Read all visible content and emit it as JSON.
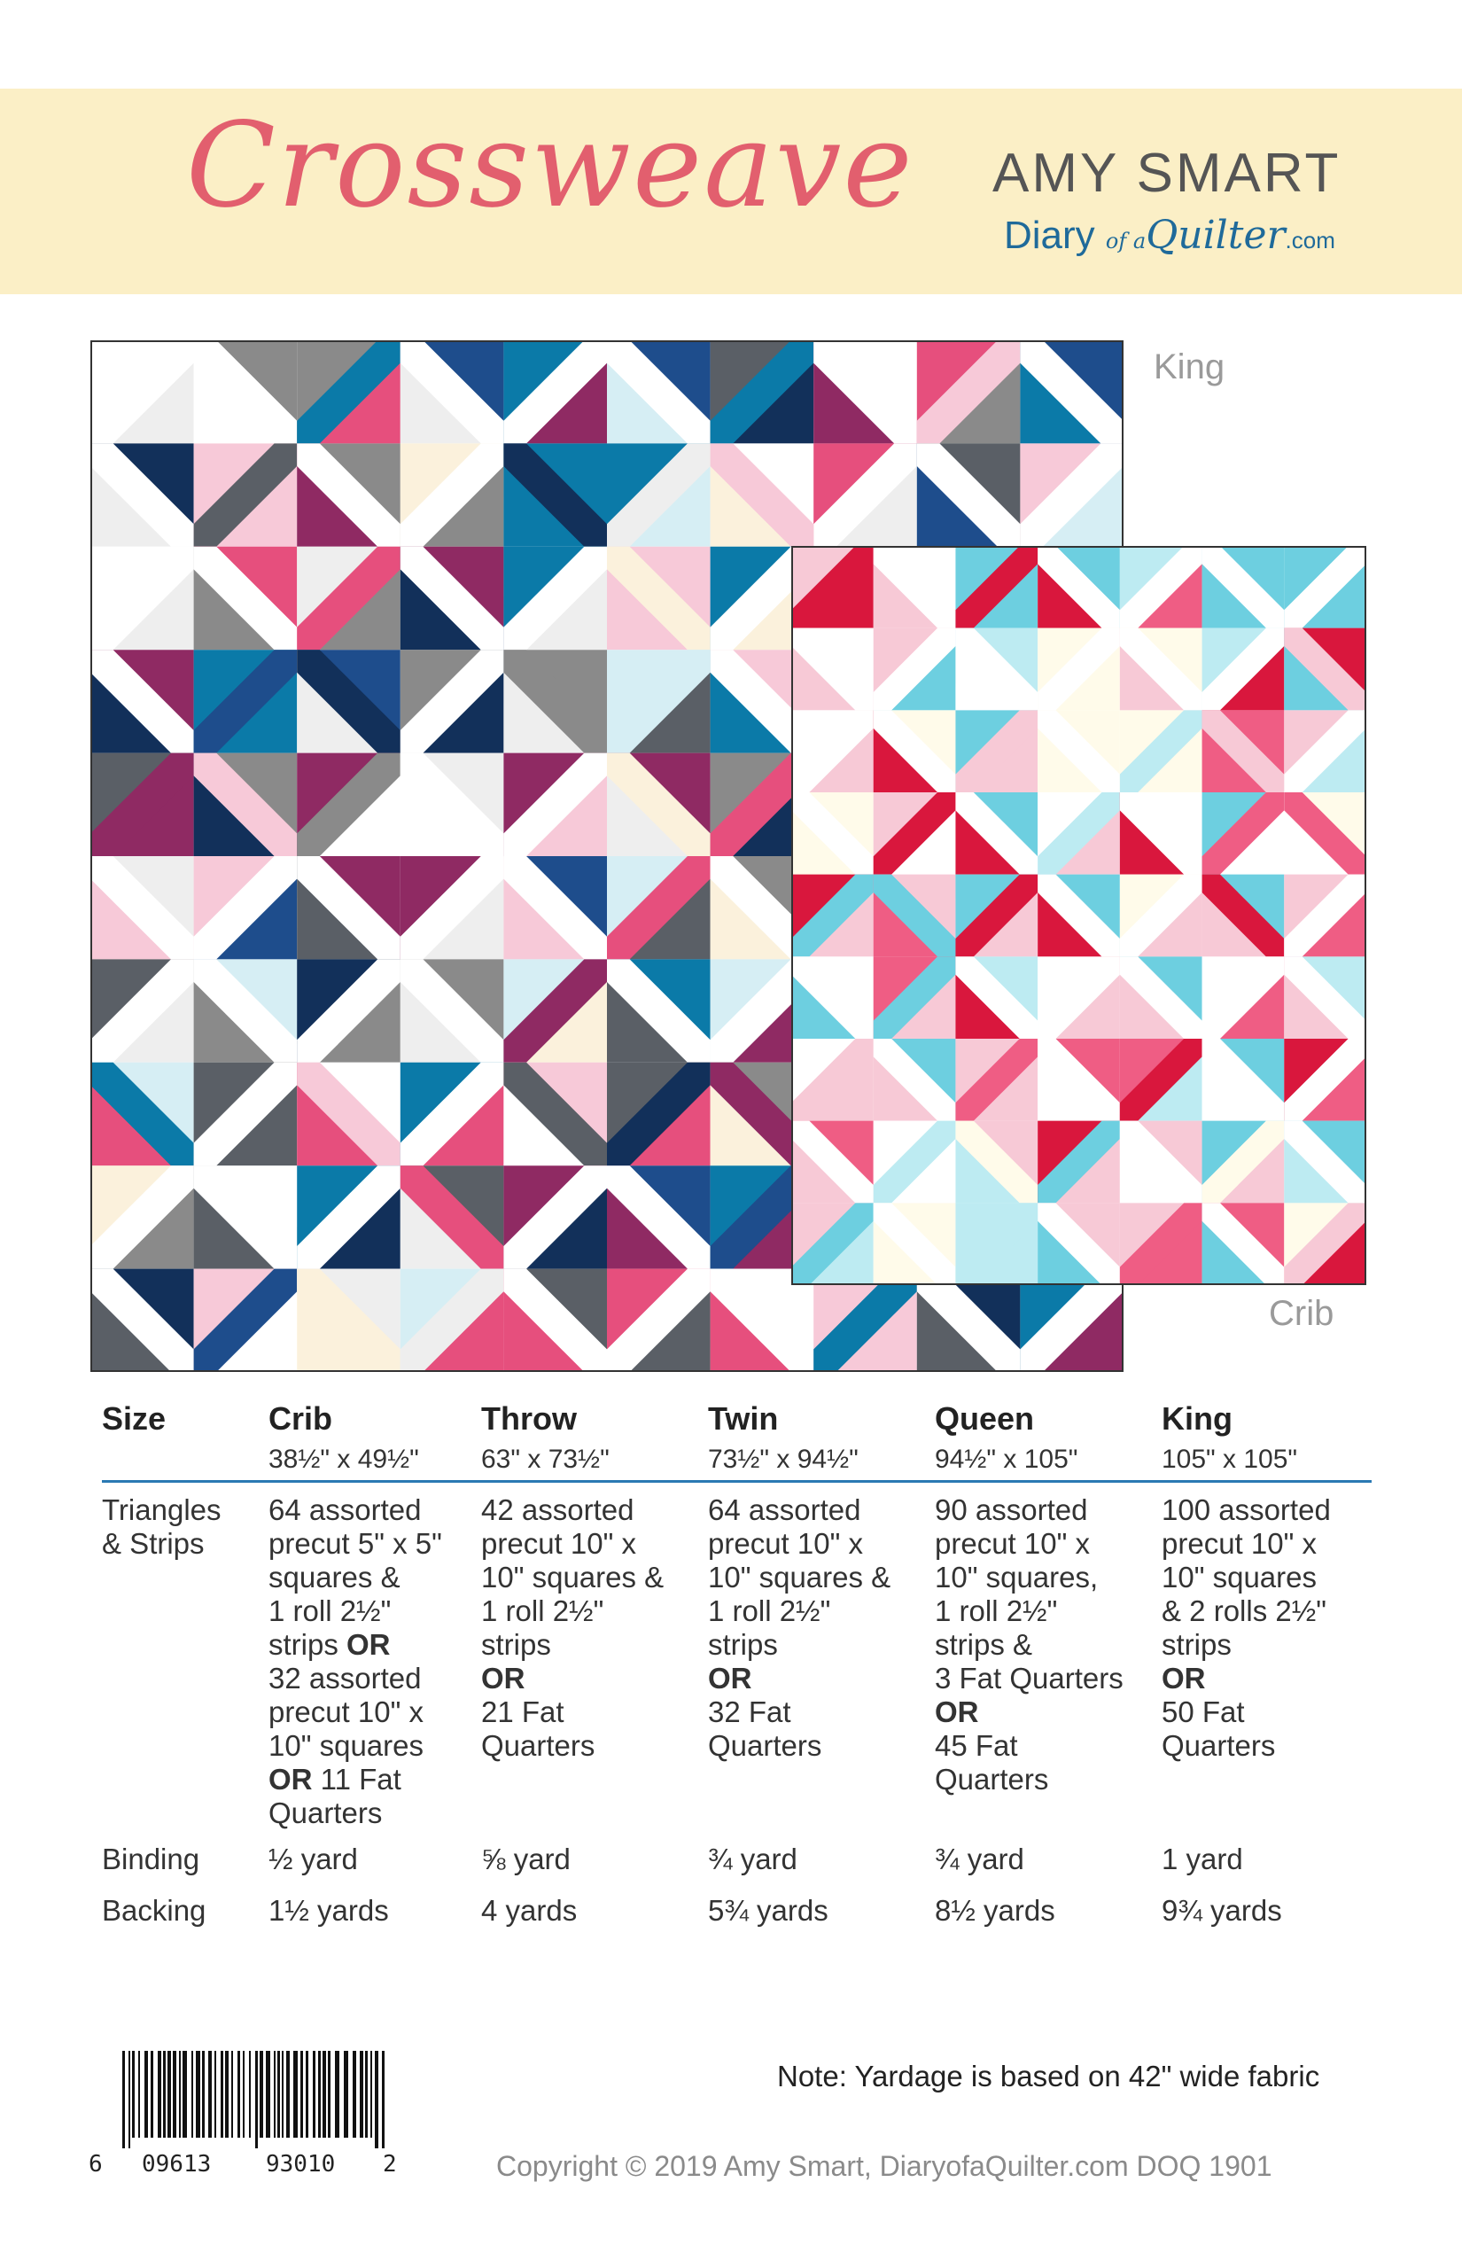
{
  "header": {
    "title": "Crossweave",
    "author": "AMY SMART",
    "site_part1": "Diary",
    "site_part2": "of a",
    "site_part3": "Quilter",
    "site_part4": ".com"
  },
  "labels": {
    "king": "King",
    "crib": "Crib"
  },
  "colors": {
    "banner": "#fbefc6",
    "title": "#e25f6e",
    "rule": "#2a79b3",
    "king_palette": [
      "#12305a",
      "#1e4d8c",
      "#0b7aa8",
      "#5a5f66",
      "#8a8a8a",
      "#8f2a63",
      "#e64f7d",
      "#f7c9d8",
      "#d6eef4",
      "#fbf1dc",
      "#ffffff",
      "#eeeeee"
    ],
    "crib_palette": [
      "#d9173d",
      "#ef5d84",
      "#f7c9d6",
      "#6dcfe0",
      "#bdebf2",
      "#fffbea",
      "#ffffff"
    ]
  },
  "table": {
    "row_labels": {
      "size": "Size",
      "triangles_1": "Triangles",
      "triangles_2": "& Strips",
      "binding": "Binding",
      "backing": "Backing"
    },
    "columns": [
      {
        "name": "Crib",
        "dims": "38½\" x 49½\"",
        "triangles": [
          {
            "t": "64 assorted"
          },
          {
            "t": "precut 5\" x 5\""
          },
          {
            "t": "squares &"
          },
          {
            "t": "1 roll 2½\""
          },
          {
            "t": "strips ",
            "b": "OR"
          },
          {
            "t": "32 assorted"
          },
          {
            "t": "precut 10\" x"
          },
          {
            "t": "10\" squares"
          },
          {
            "b": "OR",
            "t": " 11 Fat"
          },
          {
            "t": "Quarters"
          }
        ],
        "binding": "½ yard",
        "backing": "1½ yards"
      },
      {
        "name": "Throw",
        "dims": "63\" x 73½\"",
        "triangles": [
          {
            "t": "42 assorted"
          },
          {
            "t": "precut 10\" x"
          },
          {
            "t": "10\" squares &"
          },
          {
            "t": "1 roll 2½\""
          },
          {
            "t": "strips"
          },
          {
            "b": "OR"
          },
          {
            "t": "21 Fat"
          },
          {
            "t": "Quarters"
          }
        ],
        "binding": "⅝ yard",
        "backing": "4 yards"
      },
      {
        "name": "Twin",
        "dims": "73½\" x 94½\"",
        "triangles": [
          {
            "t": "64 assorted"
          },
          {
            "t": "precut 10\" x"
          },
          {
            "t": "10\" squares &"
          },
          {
            "t": "1 roll 2½\""
          },
          {
            "t": "strips"
          },
          {
            "b": "OR"
          },
          {
            "t": "32 Fat"
          },
          {
            "t": "Quarters"
          }
        ],
        "binding": "¾ yard",
        "backing": "5¾ yards"
      },
      {
        "name": "Queen",
        "dims": "94½\" x 105\"",
        "triangles": [
          {
            "t": "90 assorted"
          },
          {
            "t": "precut 10\" x"
          },
          {
            "t": "10\" squares,"
          },
          {
            "t": "1 roll 2½\""
          },
          {
            "t": "strips &"
          },
          {
            "t": "3 Fat Quarters"
          },
          {
            "b": "OR"
          },
          {
            "t": "45 Fat"
          },
          {
            "t": "Quarters"
          }
        ],
        "binding": "¾ yard",
        "backing": "8½ yards"
      },
      {
        "name": "King",
        "dims": "105\" x 105\"",
        "triangles": [
          {
            "t": "100 assorted"
          },
          {
            "t": "precut 10\" x"
          },
          {
            "t": "10\" squares"
          },
          {
            "t": "& 2 rolls 2½\""
          },
          {
            "t": "strips"
          },
          {
            "b": "OR"
          },
          {
            "t": "50 Fat"
          },
          {
            "t": "Quarters"
          }
        ],
        "binding": "1 yard",
        "backing": "9¾ yards"
      }
    ]
  },
  "footer": {
    "upc_left": "6",
    "upc_mid1": "09613",
    "upc_mid2": "93010",
    "upc_right": "2",
    "note": "Note: Yardage is based on 42\" wide fabric",
    "copyright": "Copyright © 2019 Amy Smart, DiaryofaQuilter.com  DOQ 1901"
  }
}
